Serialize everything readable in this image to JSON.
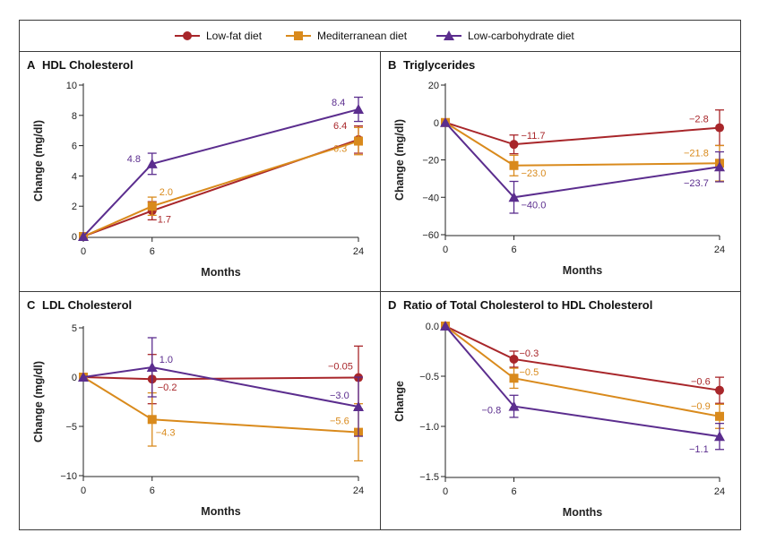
{
  "legend": [
    {
      "name": "Low-fat diet",
      "color": "#a8262a",
      "marker": "circle"
    },
    {
      "name": "Mediterranean diet",
      "color": "#d98a1c",
      "marker": "square"
    },
    {
      "name": "Low-carbohydrate diet",
      "color": "#5b2d8e",
      "marker": "triangle"
    }
  ],
  "chart_data": [
    {
      "type": "line",
      "letter": "A",
      "title": "HDL Cholesterol",
      "xlabel": "Months",
      "ylabel": "Change (mg/dl)",
      "x": [
        0,
        6,
        24
      ],
      "xticks": [
        0,
        6,
        24
      ],
      "ylim": [
        0,
        10
      ],
      "yticks": [
        0,
        2,
        4,
        6,
        8,
        10
      ],
      "ytick_labels": [
        "0",
        "2",
        "4",
        "6",
        "8",
        "10"
      ],
      "series": [
        {
          "name": "Low-fat diet",
          "values": [
            0,
            1.7,
            6.4
          ],
          "error": [
            0,
            0.6,
            0.9
          ],
          "labels": [
            "",
            "1.7",
            "6.4"
          ]
        },
        {
          "name": "Mediterranean diet",
          "values": [
            0,
            2.0,
            6.3
          ],
          "error": [
            0,
            0.6,
            0.9
          ],
          "labels": [
            "",
            "2.0",
            "6.3"
          ]
        },
        {
          "name": "Low-carbohydrate diet",
          "values": [
            0,
            4.8,
            8.4
          ],
          "error": [
            0,
            0.7,
            0.8
          ],
          "labels": [
            "",
            "4.8",
            "8.4"
          ]
        }
      ]
    },
    {
      "type": "line",
      "letter": "B",
      "title": "Triglycerides",
      "xlabel": "Months",
      "ylabel": "Change (mg/dl)",
      "x": [
        0,
        6,
        24
      ],
      "xticks": [
        0,
        6,
        24
      ],
      "ylim": [
        -60,
        20
      ],
      "yticks": [
        -60,
        -40,
        -20,
        0,
        20
      ],
      "ytick_labels": [
        "−60",
        "−40",
        "−20",
        "0",
        "20"
      ],
      "series": [
        {
          "name": "Low-fat diet",
          "values": [
            0,
            -11.7,
            -2.8
          ],
          "error": [
            0,
            5.0,
            9.5
          ],
          "labels": [
            "",
            "−11.7",
            "−2.8"
          ]
        },
        {
          "name": "Mediterranean diet",
          "values": [
            0,
            -23.0,
            -21.8
          ],
          "error": [
            0,
            5.5,
            9.5
          ],
          "labels": [
            "",
            "−23.0",
            "−21.8"
          ]
        },
        {
          "name": "Low-carbohydrate diet",
          "values": [
            0,
            -40.0,
            -23.7
          ],
          "error": [
            0,
            8.5,
            8.0
          ],
          "labels": [
            "",
            "−40.0",
            "−23.7"
          ]
        }
      ]
    },
    {
      "type": "line",
      "letter": "C",
      "title": "LDL Cholesterol",
      "xlabel": "Months",
      "ylabel": "Change (mg/dl)",
      "x": [
        0,
        6,
        24
      ],
      "xticks": [
        0,
        6,
        24
      ],
      "ylim": [
        -10,
        5
      ],
      "yticks": [
        -10,
        -5,
        0,
        5
      ],
      "ytick_labels": [
        "−10",
        "−5",
        "0",
        "5"
      ],
      "series": [
        {
          "name": "Low-fat diet",
          "values": [
            0,
            -0.2,
            -0.05
          ],
          "error": [
            0,
            2.5,
            3.2
          ],
          "labels": [
            "",
            "−0.2",
            "−0.05"
          ]
        },
        {
          "name": "Mediterranean diet",
          "values": [
            0,
            -4.3,
            -5.6
          ],
          "error": [
            0,
            2.7,
            2.9
          ],
          "labels": [
            "",
            "−4.3",
            "−5.6"
          ]
        },
        {
          "name": "Low-carbohydrate diet",
          "values": [
            0,
            1.0,
            -3.0
          ],
          "error": [
            0,
            3.0,
            3.0
          ],
          "labels": [
            "",
            "1.0",
            "−3.0"
          ]
        }
      ]
    },
    {
      "type": "line",
      "letter": "D",
      "title": "Ratio of Total Cholesterol to HDL Cholesterol",
      "xlabel": "Months",
      "ylabel": "Change",
      "x": [
        0,
        6,
        24
      ],
      "xticks": [
        0,
        6,
        24
      ],
      "ylim": [
        -1.5,
        0
      ],
      "yticks": [
        -1.5,
        -1.0,
        -0.5,
        0
      ],
      "ytick_labels": [
        "−1.5",
        "−1.0",
        "−0.5",
        "0.0"
      ],
      "series": [
        {
          "name": "Low-fat diet",
          "values": [
            0,
            -0.33,
            -0.64
          ],
          "error": [
            0,
            0.08,
            0.13
          ],
          "labels": [
            "",
            "−0.3",
            "−0.6"
          ]
        },
        {
          "name": "Mediterranean diet",
          "values": [
            0,
            -0.52,
            -0.9
          ],
          "error": [
            0,
            0.1,
            0.12
          ],
          "labels": [
            "",
            "−0.5",
            "−0.9"
          ]
        },
        {
          "name": "Low-carbohydrate diet",
          "values": [
            0,
            -0.8,
            -1.1
          ],
          "error": [
            0,
            0.11,
            0.13
          ],
          "labels": [
            "",
            "−0.8",
            "−1.1"
          ]
        }
      ]
    }
  ]
}
